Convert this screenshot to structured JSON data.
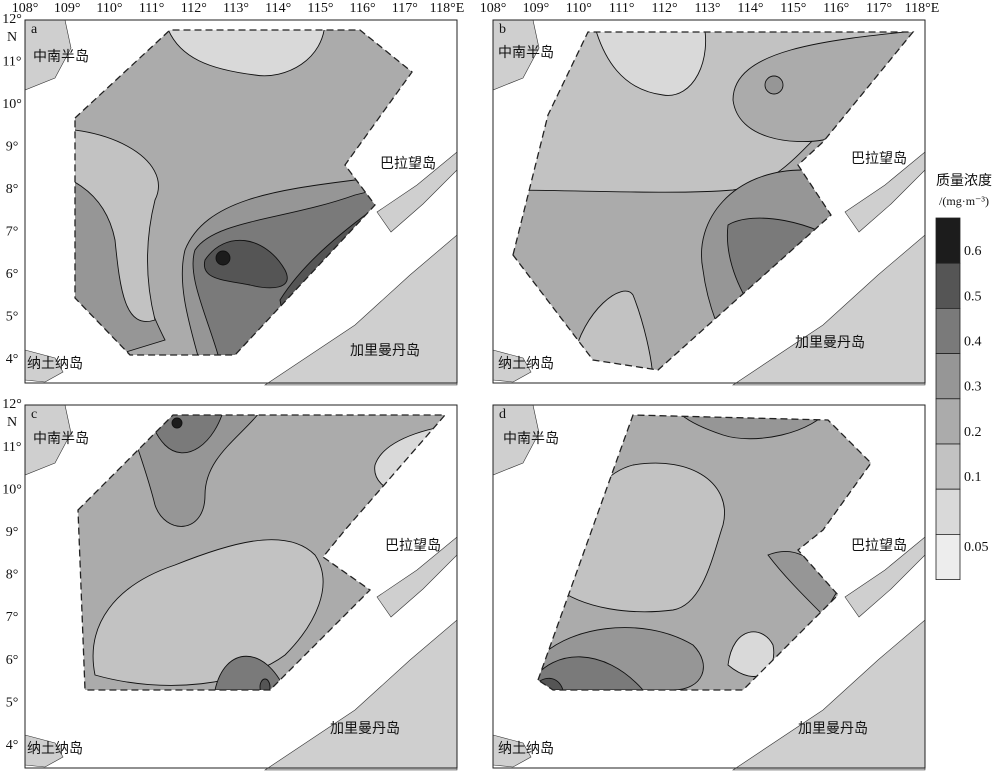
{
  "lon_ticks": [
    "108°",
    "109°",
    "110°",
    "111°",
    "112°",
    "113°",
    "114°",
    "115°",
    "116°",
    "117°",
    "118°E"
  ],
  "lat_ticks": [
    "12°",
    "11°",
    "10°",
    "9°",
    "8°",
    "7°",
    "6°",
    "5°",
    "4°"
  ],
  "lat_unit": "N",
  "panels": [
    {
      "label": "a",
      "places": [
        "中南半岛",
        "巴拉望岛",
        "纳土纳岛",
        "加里曼丹岛"
      ]
    },
    {
      "label": "b",
      "places": [
        "中南半岛",
        "巴拉望岛",
        "纳土纳岛",
        "加里曼丹岛"
      ]
    },
    {
      "label": "c",
      "places": [
        "中南半岛",
        "巴拉望岛",
        "纳土纳岛",
        "加里曼丹岛"
      ]
    },
    {
      "label": "d",
      "places": [
        "中南半岛",
        "巴拉望岛",
        "纳土纳岛",
        "加里曼丹岛"
      ]
    }
  ],
  "legend": {
    "title": "质量浓度",
    "unit": "/(mg·m⁻³)",
    "levels": [
      "0.6",
      "0.5",
      "0.4",
      "0.3",
      "0.2",
      "0.1",
      "0.05"
    ],
    "colors": [
      "#1c1c1c",
      "#555555",
      "#7a7a7a",
      "#969696",
      "#ababab",
      "#c2c2c2",
      "#d9d9d9",
      "#ededed"
    ]
  }
}
